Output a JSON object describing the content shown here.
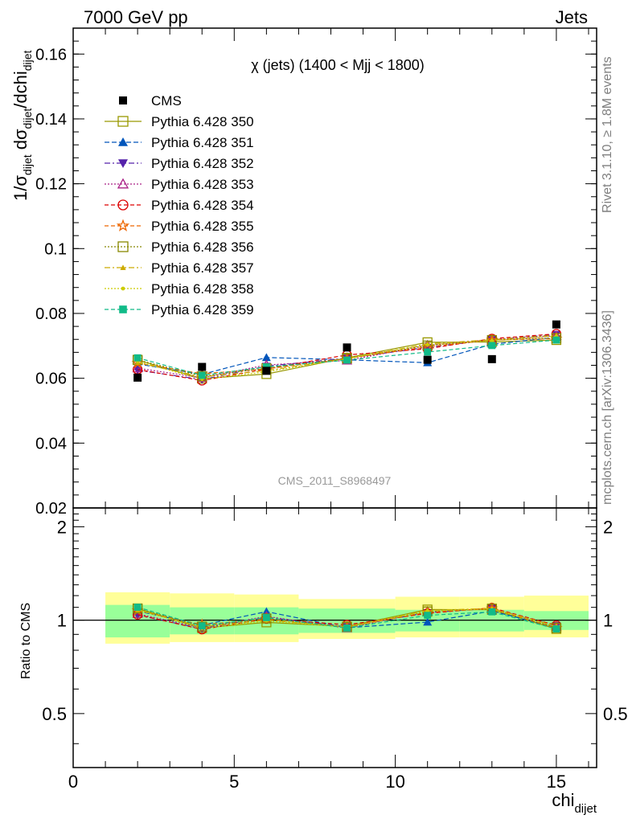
{
  "header": {
    "left": "7000 GeV pp",
    "right": "Jets"
  },
  "side_labels": {
    "rivet": "Rivet 3.1.10, ≥ 1.8M events",
    "mcplots": "mcplots.cern.ch [arXiv:1306.3436]"
  },
  "plot_title": "χ (jets) (1400 < Mjj < 1800)",
  "watermark": "CMS_2011_S8968497",
  "ylabel_main": {
    "a": "1/σ",
    "a_sub": "dijet",
    "b": " dσ",
    "b_sub": "dijet",
    "c": "/dchi",
    "c_sub": "dijet"
  },
  "ylabel_ratio": "Ratio to CMS",
  "xlabel": {
    "main": "chi",
    "sub": "dijet"
  },
  "colors": {
    "data": "#000000",
    "band_inner": "#99ff99",
    "band_outer": "#ffff99",
    "reference_line": "#000000"
  },
  "chart_data": [
    {
      "type": "line",
      "panel": "main",
      "xlim": [
        0,
        16.25
      ],
      "ylim": [
        0.02,
        0.168
      ],
      "xticks": [
        0,
        5,
        10,
        15
      ],
      "yticks": [
        0.02,
        0.04,
        0.06,
        0.08,
        0.1,
        0.12,
        0.14,
        0.16
      ],
      "ytick_labels": [
        "0.02",
        "0.04",
        "0.06",
        "0.08",
        "0.1",
        "0.12",
        "0.14",
        "0.16"
      ],
      "x": [
        2,
        4,
        6,
        8.5,
        11,
        13,
        15
      ],
      "bin_edges": [
        1,
        3,
        5,
        7,
        10,
        12,
        14,
        16
      ],
      "data": {
        "name": "CMS",
        "values": [
          0.0602,
          0.0635,
          0.0623,
          0.0695,
          0.0657,
          0.0659,
          0.0766
        ]
      },
      "series": [
        {
          "name": "Pythia 6.428 350",
          "color": "#999900",
          "marker": "square-open",
          "dash": "solid",
          "values": [
            0.0656,
            0.0599,
            0.0613,
            0.0663,
            0.0711,
            0.0712,
            0.0718
          ]
        },
        {
          "name": "Pythia 6.428 351",
          "color": "#0055bb",
          "marker": "triangle-up",
          "dash": "6,3",
          "values": [
            0.0644,
            0.0612,
            0.0664,
            0.0657,
            0.0648,
            0.0705,
            0.0726
          ]
        },
        {
          "name": "Pythia 6.428 352",
          "color": "#5522aa",
          "marker": "triangle-down",
          "dash": "7,3,2,3",
          "values": [
            0.0625,
            0.0596,
            0.0637,
            0.0662,
            0.0695,
            0.0719,
            0.0735
          ]
        },
        {
          "name": "Pythia 6.428 353",
          "color": "#aa2288",
          "marker": "triangle-up-open",
          "dash": "2,2",
          "values": [
            0.0631,
            0.0601,
            0.0641,
            0.0655,
            0.0702,
            0.0718,
            0.0731
          ]
        },
        {
          "name": "Pythia 6.428 354",
          "color": "#dd0000",
          "marker": "circle-open",
          "dash": "5,3",
          "values": [
            0.0627,
            0.0593,
            0.0629,
            0.0672,
            0.0691,
            0.0722,
            0.0737
          ]
        },
        {
          "name": "Pythia 6.428 355",
          "color": "#ee6600",
          "marker": "star-open",
          "dash": "5,3",
          "values": [
            0.0647,
            0.0614,
            0.0629,
            0.0661,
            0.0697,
            0.0718,
            0.0722
          ]
        },
        {
          "name": "Pythia 6.428 356",
          "color": "#888800",
          "marker": "square-open",
          "dash": "2,2",
          "values": [
            0.0657,
            0.0606,
            0.0631,
            0.0661,
            0.0701,
            0.0718,
            0.0724
          ]
        },
        {
          "name": "Pythia 6.428 357",
          "color": "#ccaa00",
          "marker": "triangle-up-small",
          "dash": "7,3,2,3",
          "values": [
            0.0648,
            0.0604,
            0.0624,
            0.066,
            0.0706,
            0.0719,
            0.0733
          ]
        },
        {
          "name": "Pythia 6.428 358",
          "color": "#cccc00",
          "marker": "dot",
          "dash": "2,2",
          "values": [
            0.0652,
            0.0597,
            0.062,
            0.0661,
            0.0704,
            0.0716,
            0.073
          ]
        },
        {
          "name": "Pythia 6.428 359",
          "color": "#11bb88",
          "marker": "square",
          "dash": "5,3",
          "values": [
            0.0663,
            0.0609,
            0.0635,
            0.0656,
            0.0681,
            0.0701,
            0.0718
          ]
        }
      ]
    },
    {
      "type": "line",
      "panel": "ratio",
      "ylabel": "Ratio to CMS",
      "xlabel": "chi_dijet",
      "xlim": [
        0,
        16.25
      ],
      "ylim": [
        0.335,
        2.3
      ],
      "log_y": true,
      "yticks": [
        0.5,
        1,
        2
      ],
      "ytick_labels": [
        "0.5",
        "1",
        "2"
      ],
      "xticks": [
        0,
        5,
        10,
        15
      ],
      "xtick_labels": [
        "0",
        "5",
        "10",
        "15"
      ],
      "reference": 1,
      "uncertainty_bands": {
        "bin_edges": [
          1,
          3,
          5,
          7,
          10,
          12,
          14,
          16
        ],
        "inner_low": [
          0.88,
          0.9,
          0.9,
          0.91,
          0.92,
          0.92,
          0.93
        ],
        "inner_high": [
          1.12,
          1.1,
          1.1,
          1.09,
          1.08,
          1.08,
          1.07
        ],
        "outer_low": [
          0.84,
          0.85,
          0.85,
          0.87,
          0.88,
          0.88,
          0.88
        ],
        "outer_high": [
          1.23,
          1.22,
          1.21,
          1.17,
          1.19,
          1.19,
          1.2
        ]
      }
    }
  ]
}
